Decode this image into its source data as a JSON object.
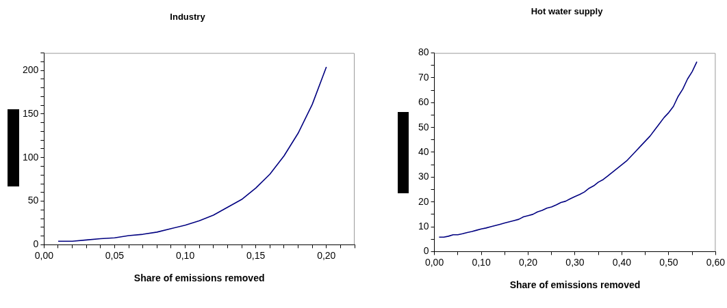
{
  "chart_data": [
    {
      "type": "line",
      "title": "Industry",
      "xlabel": "Share of emissions removed",
      "grid": false,
      "legend": false,
      "marker": "none",
      "line_style": "solid",
      "x": [
        0.01,
        0.02,
        0.03,
        0.04,
        0.05,
        0.06,
        0.07,
        0.08,
        0.09,
        0.1,
        0.11,
        0.12,
        0.13,
        0.14,
        0.15,
        0.16,
        0.17,
        0.18,
        0.19,
        0.2
      ],
      "series": [
        {
          "color": "#000080",
          "values": [
            4,
            4,
            5.5,
            7,
            8,
            10.5,
            12,
            14.5,
            18.5,
            22.5,
            27.5,
            34,
            43,
            52,
            65,
            81,
            102,
            128,
            161,
            204
          ]
        }
      ],
      "xlim": [
        0,
        0.22
      ],
      "ylim": [
        0,
        220
      ],
      "xticks": [
        {
          "value": 0,
          "label": "0,00"
        },
        {
          "value": 0.01,
          "label": null
        },
        {
          "value": 0.02,
          "label": null
        },
        {
          "value": 0.03,
          "label": null
        },
        {
          "value": 0.04,
          "label": null
        },
        {
          "value": 0.05,
          "label": "0,05"
        },
        {
          "value": 0.06,
          "label": null
        },
        {
          "value": 0.07,
          "label": null
        },
        {
          "value": 0.08,
          "label": null
        },
        {
          "value": 0.09,
          "label": null
        },
        {
          "value": 0.1,
          "label": "0,10"
        },
        {
          "value": 0.11,
          "label": null
        },
        {
          "value": 0.12,
          "label": null
        },
        {
          "value": 0.13,
          "label": null
        },
        {
          "value": 0.14,
          "label": null
        },
        {
          "value": 0.15,
          "label": "0,15"
        },
        {
          "value": 0.16,
          "label": null
        },
        {
          "value": 0.17,
          "label": null
        },
        {
          "value": 0.18,
          "label": null
        },
        {
          "value": 0.19,
          "label": null
        },
        {
          "value": 0.2,
          "label": "0,20"
        },
        {
          "value": 0.21,
          "label": null
        },
        {
          "value": 0.22,
          "label": null
        }
      ],
      "yticks": [
        0,
        {
          "value": 10,
          "label": null
        },
        {
          "value": 20,
          "label": null
        },
        {
          "value": 30,
          "label": null
        },
        {
          "value": 40,
          "label": null
        },
        50,
        {
          "value": 60,
          "label": null
        },
        {
          "value": 70,
          "label": null
        },
        {
          "value": 80,
          "label": null
        },
        {
          "value": 90,
          "label": null
        },
        100,
        {
          "value": 110,
          "label": null
        },
        {
          "value": 120,
          "label": null
        },
        {
          "value": 130,
          "label": null
        },
        {
          "value": 140,
          "label": null
        },
        150,
        {
          "value": 160,
          "label": null
        },
        {
          "value": 170,
          "label": null
        },
        {
          "value": 180,
          "label": null
        },
        {
          "value": 190,
          "label": null
        },
        200,
        {
          "value": 210,
          "label": null
        },
        {
          "value": 220,
          "label": null
        }
      ]
    },
    {
      "type": "line",
      "title": "Hot water supply",
      "xlabel": "Share of emissions removed",
      "grid": false,
      "legend": false,
      "marker": "none",
      "line_style": "solid",
      "x": [
        0.01,
        0.02,
        0.03,
        0.04,
        0.05,
        0.06,
        0.07,
        0.08,
        0.09,
        0.1,
        0.11,
        0.12,
        0.13,
        0.14,
        0.15,
        0.16,
        0.17,
        0.18,
        0.19,
        0.2,
        0.21,
        0.22,
        0.23,
        0.24,
        0.25,
        0.26,
        0.27,
        0.28,
        0.29,
        0.3,
        0.31,
        0.32,
        0.33,
        0.34,
        0.35,
        0.36,
        0.37,
        0.38,
        0.39,
        0.4,
        0.41,
        0.42,
        0.43,
        0.44,
        0.45,
        0.46,
        0.47,
        0.48,
        0.49,
        0.5,
        0.51,
        0.52,
        0.53,
        0.54,
        0.55,
        0.56
      ],
      "series": [
        {
          "color": "#000080",
          "values": [
            5.8,
            5.8,
            6.2,
            6.8,
            6.8,
            7.2,
            7.7,
            8.1,
            8.6,
            9.1,
            9.5,
            10,
            10.5,
            11,
            11.5,
            12,
            12.5,
            13,
            14,
            14.5,
            15,
            16,
            16.6,
            17.5,
            18,
            18.8,
            19.8,
            20.3,
            21.3,
            22.2,
            23,
            24,
            25.5,
            26.5,
            28,
            29,
            30.5,
            32,
            33.5,
            35,
            36.5,
            38.5,
            40.5,
            42.5,
            44.5,
            46.5,
            49,
            51.5,
            54,
            56,
            58.5,
            62.5,
            65.5,
            69.5,
            72.5,
            76.5
          ]
        }
      ],
      "xlim": [
        0,
        0.6
      ],
      "ylim": [
        0,
        80
      ],
      "xticks": [
        {
          "value": 0,
          "label": "0,00"
        },
        {
          "value": 0.05,
          "label": null
        },
        {
          "value": 0.1,
          "label": "0,10"
        },
        {
          "value": 0.15,
          "label": null
        },
        {
          "value": 0.2,
          "label": "0,20"
        },
        {
          "value": 0.25,
          "label": null
        },
        {
          "value": 0.3,
          "label": "0,30"
        },
        {
          "value": 0.35,
          "label": null
        },
        {
          "value": 0.4,
          "label": "0,40"
        },
        {
          "value": 0.45,
          "label": null
        },
        {
          "value": 0.5,
          "label": "0,50"
        },
        {
          "value": 0.55,
          "label": null
        },
        {
          "value": 0.6,
          "label": "0,60"
        }
      ],
      "yticks": [
        0,
        {
          "value": 5,
          "label": null
        },
        10,
        {
          "value": 15,
          "label": null
        },
        20,
        {
          "value": 25,
          "label": null
        },
        30,
        {
          "value": 35,
          "label": null
        },
        40,
        {
          "value": 45,
          "label": null
        },
        50,
        {
          "value": 55,
          "label": null
        },
        60,
        {
          "value": 65,
          "label": null
        },
        70,
        {
          "value": 75,
          "label": null
        },
        80
      ]
    }
  ]
}
